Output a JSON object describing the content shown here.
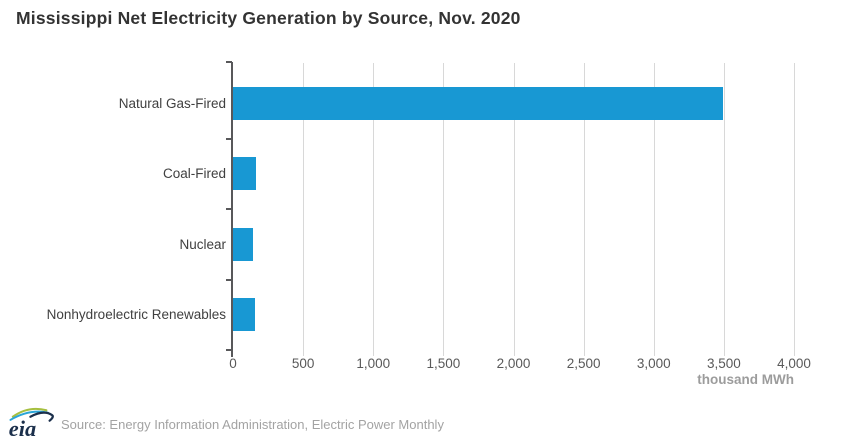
{
  "title": "Mississippi Net Electricity Generation by Source, Nov. 2020",
  "chart_data": {
    "type": "bar",
    "orientation": "horizontal",
    "title": "Mississippi Net Electricity Generation by Source, Nov. 2020",
    "categories": [
      "Natural Gas-Fired",
      "Coal-Fired",
      "Nuclear",
      "Nonhydroelectric Renewables"
    ],
    "values": [
      3490,
      165,
      145,
      155
    ],
    "xlabel": "thousand MWh",
    "ylabel": "",
    "xlim": [
      0,
      4000
    ],
    "xticks": [
      0,
      500,
      1000,
      1500,
      2000,
      2500,
      3000,
      3500,
      4000
    ],
    "grid": true,
    "legend": "none",
    "bar_color": "#1898d3",
    "axis_color": "#58585a",
    "grid_color": "#d8d8d8"
  },
  "footer": {
    "logo_text": "eia",
    "source": "Source: Energy Information Administration, Electric Power Monthly"
  }
}
